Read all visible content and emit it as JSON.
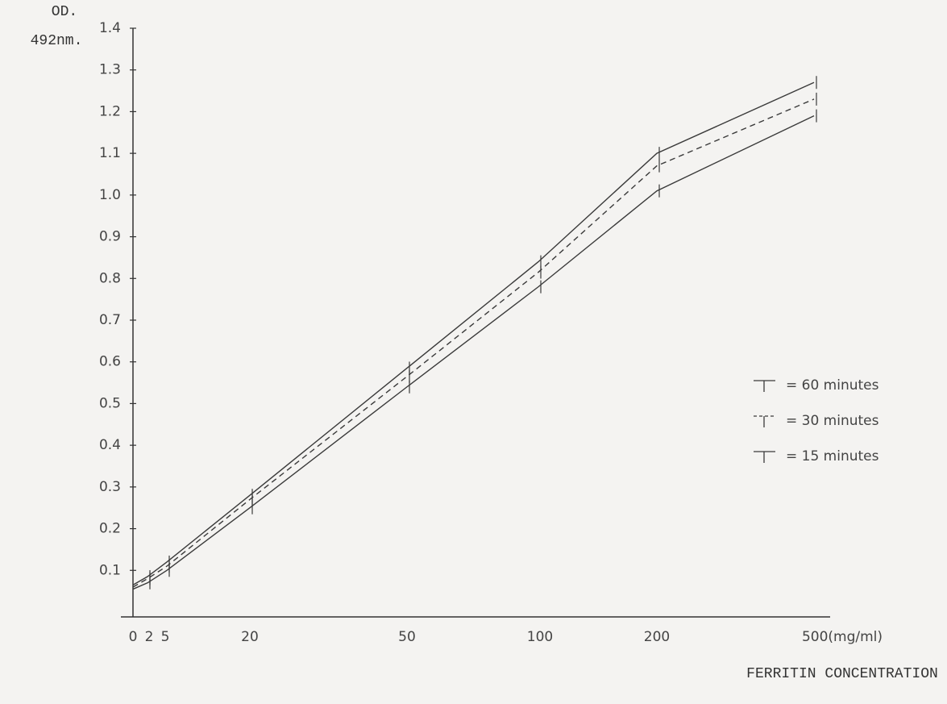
{
  "chart_data": {
    "type": "line",
    "ylabel": [
      "OD.",
      "492nm."
    ],
    "xlabel": "FERRITIN CONCENTRATION",
    "categories": [
      "0",
      "2",
      "5",
      "20",
      "50",
      "100",
      "200",
      "500(mg/ml)"
    ],
    "series": [
      {
        "name": "= 60 minutes",
        "color": "#3a3a3a",
        "dashed": false,
        "values": [
          0.065,
          0.085,
          0.12,
          0.28,
          0.585,
          0.84,
          1.1,
          1.27
        ]
      },
      {
        "name": "= 30 minutes",
        "color": "#3a3a3a",
        "dashed": true,
        "values": [
          0.06,
          0.08,
          0.11,
          0.27,
          0.565,
          0.815,
          1.07,
          1.23
        ]
      },
      {
        "name": "= 15 minutes",
        "color": "#3a3a3a",
        "dashed": false,
        "values": [
          0.055,
          0.07,
          0.1,
          0.25,
          0.54,
          0.78,
          1.01,
          1.19
        ]
      }
    ],
    "ylim": [
      0,
      1.4
    ],
    "yticks": [
      {
        "value": 0.1,
        "label": "0.1"
      },
      {
        "value": 0.2,
        "label": "0.2"
      },
      {
        "value": 0.3,
        "label": "0.3"
      },
      {
        "value": 0.4,
        "label": "0.4"
      },
      {
        "value": 0.5,
        "label": "0.5"
      },
      {
        "value": 0.6,
        "label": "0.6"
      },
      {
        "value": 0.7,
        "label": "0.7"
      },
      {
        "value": 0.8,
        "label": "0.8"
      },
      {
        "value": 0.9,
        "label": "0.9"
      },
      {
        "value": 1.0,
        "label": "1.0"
      },
      {
        "value": 1.1,
        "label": "1.1"
      },
      {
        "value": 1.2,
        "label": "1.2"
      },
      {
        "value": 1.3,
        "label": "1.3"
      },
      {
        "value": 1.4,
        "label": "1.4"
      }
    ],
    "grid": false
  }
}
